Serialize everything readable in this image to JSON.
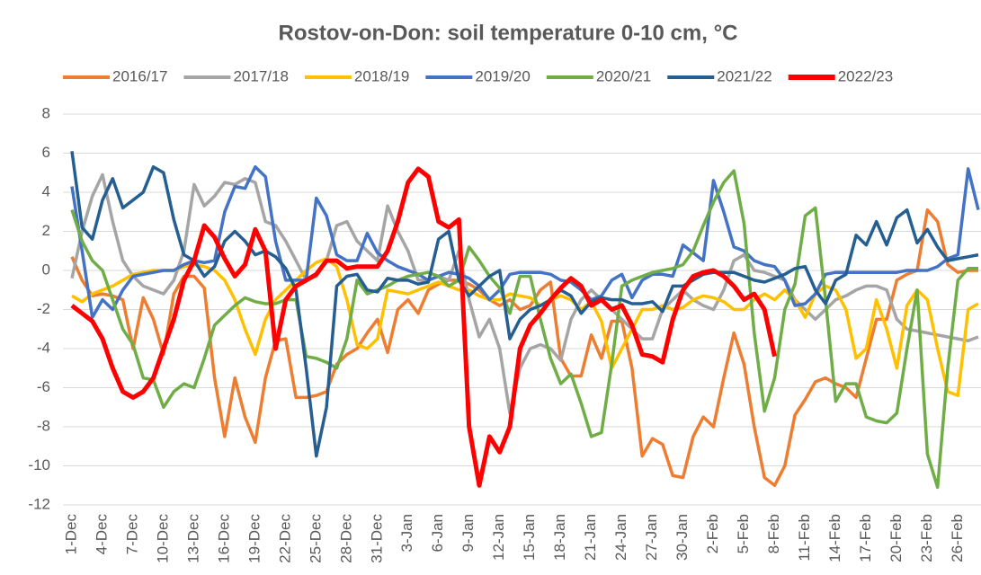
{
  "chart_data": {
    "type": "line",
    "title": "Rostov-on-Don: soil temperature 0-10 cm, °C",
    "categories": [
      "1-Dec",
      null,
      null,
      "4-Dec",
      null,
      null,
      "7-Dec",
      null,
      null,
      "10-Dec",
      null,
      null,
      "13-Dec",
      null,
      null,
      "16-Dec",
      null,
      null,
      "19-Dec",
      null,
      null,
      "22-Dec",
      null,
      null,
      "25-Dec",
      null,
      null,
      "28-Dec",
      null,
      null,
      "31-Dec",
      null,
      null,
      "3-Jan",
      null,
      null,
      "6-Jan",
      null,
      null,
      "9-Jan",
      null,
      null,
      "12-Jan",
      null,
      null,
      "15-Jan",
      null,
      null,
      "18-Jan",
      null,
      null,
      "21-Jan",
      null,
      null,
      "24-Jan",
      null,
      null,
      "27-Jan",
      null,
      null,
      "30-Jan",
      null,
      null,
      "2-Feb",
      null,
      null,
      "5-Feb",
      null,
      null,
      "8-Feb",
      null,
      null,
      "11-Feb",
      null,
      null,
      "14-Feb",
      null,
      null,
      "17-Feb",
      null,
      null,
      "20-Feb",
      null,
      null,
      "23-Feb",
      null,
      null,
      "26-Feb",
      null,
      null
    ],
    "ylim": [
      -12,
      8
    ],
    "yticks": [
      -12,
      -10,
      -8,
      -6,
      -4,
      -2,
      0,
      2,
      4,
      6,
      8
    ],
    "grid": true,
    "legend": "top",
    "series": [
      {
        "name": "2016/17",
        "color": "#ed7d31",
        "values": [
          0.7,
          -0.5,
          -1.3,
          -1.2,
          -1.3,
          -1.5,
          -4,
          -1.4,
          -2.5,
          -4.3,
          -1.2,
          -0.3,
          -0.3,
          -0.9,
          -5.5,
          -8.5,
          -5.5,
          -7.5,
          -8.8,
          -5.5,
          -3.6,
          -3.5,
          -6.5,
          -6.5,
          -6.4,
          -6.2,
          -4.8,
          -4.3,
          -4,
          -3.2,
          -2.5,
          -4.2,
          -2,
          -1.5,
          -2.2,
          -1,
          -0.7,
          -0.5,
          -0.5,
          -0.7,
          -1,
          -1.5,
          -1.8,
          -1.5,
          -2,
          -1.8,
          -1,
          -0.6,
          -4.5,
          -5.4,
          -5.4,
          -3.3,
          -4.5,
          -2.6,
          -2.6,
          -5,
          -9.5,
          -8.6,
          -8.9,
          -10.5,
          -10.6,
          -8.5,
          -7.5,
          -8,
          -5.5,
          -3.2,
          -4.8,
          -8,
          -10.6,
          -11,
          -10,
          -7.4,
          -6.6,
          -5.7,
          -5.5,
          -5.8,
          -6,
          -6.5,
          -4.5,
          -2.5,
          -2.5,
          -0.5,
          -0.2,
          0,
          3.1,
          2.5,
          0.3,
          -0.1,
          0,
          0
        ]
      },
      {
        "name": "2017/18",
        "color": "#a5a5a5",
        "values": [
          -0.4,
          2,
          3.8,
          4.9,
          2.5,
          0.5,
          -0.3,
          -0.8,
          -1,
          -1.2,
          -0.5,
          1,
          4.4,
          3.3,
          3.8,
          4.5,
          4.4,
          4.7,
          4.5,
          2.5,
          2.3,
          1.5,
          0.5,
          -0.5,
          -0.3,
          0.5,
          2.3,
          2.5,
          1.5,
          1,
          0.5,
          3.3,
          2,
          1,
          -0.5,
          -0.5,
          -0.3,
          -0.5,
          1,
          -1.5,
          -3.4,
          -2.5,
          -4,
          -7.3,
          -5,
          -4,
          -3.8,
          -4,
          -4.6,
          -2.5,
          -1.5,
          -1,
          -1.5,
          -2,
          -2.5,
          -3,
          -3.5,
          -3.5,
          -2,
          -1.5,
          -1,
          -1.5,
          -1.8,
          -2,
          -1,
          0.5,
          0.8,
          0,
          -0.1,
          -0.3,
          -0.5,
          -1.5,
          -2,
          -2.5,
          -2,
          -1.5,
          -1.3,
          -1,
          -0.8,
          -0.8,
          -1,
          -2.5,
          -3,
          -3.1,
          -3.2,
          -3.3,
          -3.4,
          -3.5,
          -3.6,
          -3.4
        ]
      },
      {
        "name": "2018/19",
        "color": "#ffc000",
        "values": [
          -1.3,
          -1.6,
          -1.2,
          -1,
          -0.8,
          -0.5,
          -0.2,
          -0.1,
          0,
          0,
          0,
          0.2,
          0.3,
          0.2,
          0,
          -0.5,
          -1.5,
          -3,
          -4.3,
          -2.5,
          -1.5,
          -1,
          -0.5,
          0,
          0.4,
          0.6,
          0.2,
          -1.5,
          -3.8,
          -4,
          -3.5,
          -1,
          -1.1,
          -1.2,
          -1,
          -0.8,
          -0.6,
          -0.8,
          -1,
          -1,
          -1.3,
          -1.5,
          -1.5,
          -1.2,
          -1.3,
          -1.4,
          -1.8,
          -1.5,
          -1.3,
          -1.5,
          -2,
          -1.6,
          -2.6,
          -5,
          -4,
          -3,
          -2,
          -2,
          -1.8,
          -2,
          -1.9,
          -1.5,
          -1.3,
          -1.4,
          -1.6,
          -2,
          -2,
          -1.5,
          -1.2,
          -1.5,
          -1,
          -1.5,
          -2.4,
          -1.2,
          -0.8,
          -1,
          -2,
          -4.5,
          -4,
          -1.5,
          -3,
          -5,
          -1.8,
          -1,
          -1.5,
          -4,
          -6.2,
          -6.4,
          -2,
          -1.7
        ]
      },
      {
        "name": "2019/20",
        "color": "#4472c4",
        "values": [
          4.3,
          1,
          -2.4,
          -1.5,
          -2,
          -1,
          -0.3,
          -0.2,
          -0.1,
          0,
          0,
          0.3,
          0.5,
          0.4,
          0.5,
          3,
          4.3,
          4.2,
          5.3,
          4.8,
          1.5,
          -0.5,
          -0.5,
          -0.5,
          3.7,
          2.8,
          0.8,
          0.5,
          0.5,
          1.9,
          0.9,
          0.5,
          0.2,
          0,
          -0.2,
          -0.5,
          -0.3,
          -0.1,
          -0.2,
          -0.4,
          -0.8,
          -1.5,
          -1,
          -0.2,
          -0.1,
          -0.1,
          -0.1,
          -0.2,
          -0.5,
          -0.6,
          -1,
          -1.5,
          -1.3,
          -0.5,
          -0.2,
          -1.4,
          -0.5,
          -0.2,
          -0.2,
          -0.3,
          1.3,
          0.9,
          0.5,
          4.6,
          3,
          1.2,
          1,
          0.5,
          0.3,
          0.2,
          -0.5,
          -1.8,
          -1.7,
          -1.2,
          -0.2,
          -0.1,
          -0.1,
          -0.1,
          -0.1,
          -0.1,
          -0.1,
          -0.1,
          0,
          0,
          0,
          0.2,
          0.6,
          0.8,
          5.2,
          3.1
        ]
      },
      {
        "name": "2020/21",
        "color": "#70ad47",
        "values": [
          3.1,
          1.5,
          0.5,
          0,
          -1.5,
          -3,
          -3.8,
          -5.5,
          -5.6,
          -7,
          -6.2,
          -5.8,
          -6,
          -4.5,
          -2.8,
          -2.3,
          -1.8,
          -1.4,
          -1.6,
          -1.7,
          -1.7,
          -1.5,
          -1.5,
          -4.4,
          -4.5,
          -4.7,
          -5,
          -3.5,
          -0.5,
          -1.2,
          -1,
          -0.8,
          -0.5,
          -0.3,
          -0.2,
          -0.1,
          -0.3,
          -0.8,
          -0.5,
          1.2,
          0.5,
          -0.3,
          -0.9,
          -2.2,
          -0.3,
          -0.3,
          -2.5,
          -4.5,
          -5.8,
          -5.3,
          -6.8,
          -8.5,
          -8.3,
          -4.8,
          -0.8,
          -0.5,
          -0.3,
          -0.1,
          0,
          0.1,
          0.3,
          1,
          2.3,
          3.5,
          4.5,
          5.1,
          2.4,
          -3.2,
          -7.2,
          -5.5,
          -2,
          -0.7,
          2.8,
          3.2,
          -1.5,
          -6.7,
          -5.8,
          -5.8,
          -7.5,
          -7.7,
          -7.8,
          -7.3,
          -4,
          -1,
          -9.4,
          -11.1,
          -5,
          -0.5,
          0.1,
          0.1
        ]
      },
      {
        "name": "2021/22",
        "color": "#255e91",
        "values": [
          6.1,
          2.2,
          1.6,
          3.6,
          4.7,
          3.2,
          3.6,
          4,
          5.3,
          5,
          2.6,
          0.8,
          0.5,
          -0.3,
          0.2,
          1.5,
          2,
          1.5,
          0.8,
          1,
          0.7,
          0.1,
          -1,
          -5,
          -9.5,
          -7,
          -0.8,
          -0.3,
          -0.2,
          -1,
          -1.1,
          -0.4,
          -0.5,
          -0.5,
          -0.7,
          -0.6,
          1.6,
          2,
          -0.5,
          -1.3,
          -0.8,
          -0.3,
          0,
          -3.5,
          -2.5,
          -2,
          -1.8,
          -1.5,
          -1,
          -1.3,
          -2.2,
          -1.6,
          -1.4,
          -1.5,
          -1.5,
          -1.7,
          -1.7,
          -1.6,
          -2.1,
          -0.8,
          -0.8,
          -0.5,
          -0.2,
          -0.1,
          -0.1,
          -0.1,
          -0.3,
          -0.5,
          -0.6,
          -0.4,
          -0.2,
          0.1,
          0.2,
          -1,
          -1.7,
          -0.5,
          -0.2,
          1.8,
          1.3,
          2.5,
          1.3,
          2.7,
          3.1,
          1.4,
          2.1,
          1.2,
          0.5,
          0.6,
          0.7,
          0.8
        ]
      },
      {
        "name": "2022/23",
        "color": "#ff0000",
        "values": [
          -1.8,
          -2.2,
          -2.6,
          -3.5,
          -5,
          -6.2,
          -6.5,
          -6.2,
          -5.5,
          -4,
          -2.5,
          -0.5,
          0.5,
          2.3,
          1.7,
          0.6,
          -0.3,
          0.3,
          2.1,
          1,
          -4,
          -1.5,
          -0.8,
          -0.5,
          -0.2,
          0.5,
          0.5,
          0.1,
          0.2,
          0.2,
          0.2,
          1,
          2.5,
          4.5,
          5.2,
          4.8,
          2.5,
          2.2,
          2.6,
          -8,
          -11,
          -8.5,
          -9.3,
          -8,
          -4,
          -2.8,
          -2.2,
          -1.5,
          -0.9,
          -0.4,
          -0.8,
          -1.8,
          -1.5,
          -2,
          -1.8,
          -2.8,
          -4.3,
          -4.4,
          -4.7,
          -2.5,
          -1,
          -0.3,
          -0.1,
          0,
          -0.3,
          -0.8,
          -1.5,
          -1.2,
          -2,
          -4.4,
          null,
          null,
          null,
          null,
          null,
          null,
          null,
          null,
          null,
          null,
          null,
          null,
          null,
          null,
          null,
          null,
          null,
          null,
          null,
          null
        ]
      }
    ]
  }
}
